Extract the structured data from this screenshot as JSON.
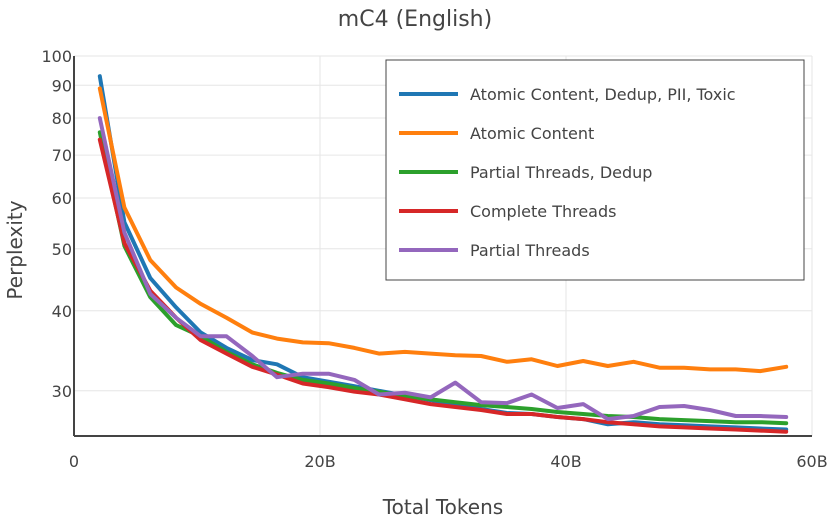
{
  "chart_data": {
    "type": "line",
    "title": "mC4 (English)",
    "xlabel": "Total Tokens",
    "ylabel": "Perplexity",
    "xlim": [
      0,
      60
    ],
    "ylim": [
      25.5,
      100
    ],
    "yscale": "log",
    "grid": true,
    "legend_position": "top-right",
    "x_ticks": [
      {
        "value": 0,
        "label": "0"
      },
      {
        "value": 20,
        "label": "20B"
      },
      {
        "value": 40,
        "label": "40B"
      },
      {
        "value": 60,
        "label": "60B"
      }
    ],
    "y_ticks": [
      {
        "value": 30,
        "label": "30"
      },
      {
        "value": 40,
        "label": "40"
      },
      {
        "value": 50,
        "label": "50"
      },
      {
        "value": 60,
        "label": "60"
      },
      {
        "value": 70,
        "label": "70"
      },
      {
        "value": 80,
        "label": "80"
      },
      {
        "value": 90,
        "label": "90"
      },
      {
        "value": 100,
        "label": "100"
      }
    ],
    "x": [
      2.1,
      4.1,
      6.2,
      8.3,
      10.3,
      12.4,
      14.5,
      16.5,
      18.6,
      20.7,
      22.8,
      24.8,
      26.9,
      29.0,
      31.0,
      33.1,
      35.2,
      37.2,
      39.3,
      41.4,
      43.4,
      45.5,
      47.6,
      49.6,
      51.7,
      53.8,
      55.8,
      57.9
    ],
    "series": [
      {
        "name": "Atomic Content, Dedup, PII, Toxic",
        "color": "#1f77b4",
        "values": [
          93,
          55,
          45,
          40.5,
          37,
          35,
          33.5,
          33,
          31.5,
          31,
          30.5,
          30,
          29.5,
          29,
          28.6,
          28.1,
          27.7,
          27.6,
          27.3,
          27.1,
          26.6,
          26.8,
          26.6,
          26.5,
          26.4,
          26.3,
          26.2,
          26.1
        ]
      },
      {
        "name": "Atomic Content",
        "color": "#ff7f0e",
        "values": [
          89,
          58,
          48,
          43.5,
          41,
          39,
          37,
          36.2,
          35.7,
          35.6,
          35,
          34.3,
          34.5,
          34.3,
          34.1,
          34,
          33.3,
          33.6,
          32.8,
          33.4,
          32.8,
          33.3,
          32.6,
          32.6,
          32.4,
          32.4,
          32.2,
          32.7
        ]
      },
      {
        "name": "Partial Threads, Dedup",
        "color": "#2ca02c",
        "values": [
          76,
          50.5,
          42,
          38,
          36.5,
          34.5,
          33,
          32,
          31.2,
          30.8,
          30.3,
          29.9,
          29.4,
          29.1,
          28.8,
          28.5,
          28.3,
          28.1,
          27.8,
          27.6,
          27.4,
          27.3,
          27.1,
          27,
          26.9,
          26.8,
          26.8,
          26.7
        ]
      },
      {
        "name": "Complete Threads",
        "color": "#d62728",
        "values": [
          74,
          51,
          43,
          39,
          36,
          34.3,
          32.7,
          31.8,
          30.8,
          30.4,
          29.9,
          29.6,
          29.1,
          28.6,
          28.3,
          28,
          27.6,
          27.6,
          27.3,
          27.1,
          26.8,
          26.6,
          26.4,
          26.3,
          26.2,
          26.1,
          26,
          25.9
        ]
      },
      {
        "name": "Partial Threads",
        "color": "#9467bd",
        "values": [
          80,
          53,
          42.5,
          39,
          36.5,
          36.5,
          34,
          31.5,
          31.9,
          31.9,
          31.2,
          29.6,
          29.8,
          29.3,
          30.9,
          28.8,
          28.7,
          29.6,
          28.2,
          28.6,
          27.1,
          27.4,
          28.3,
          28.4,
          28,
          27.4,
          27.4,
          27.3
        ]
      }
    ]
  }
}
